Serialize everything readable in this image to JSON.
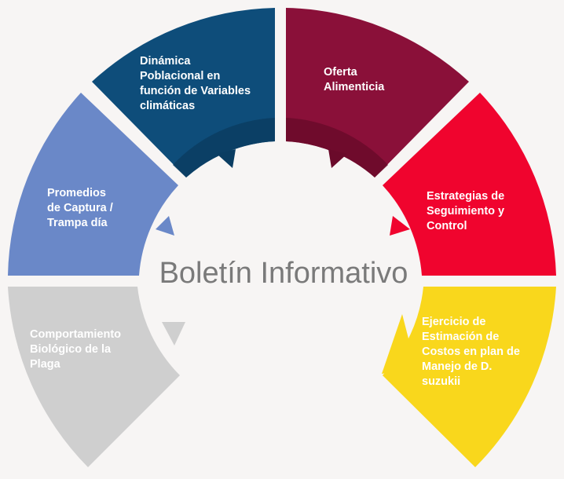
{
  "title": "Boletín Informativo",
  "colors": {
    "background": "#f7f5f4",
    "center_text": "#7a7a7a"
  },
  "segments": [
    {
      "id": "comportamiento",
      "lines": [
        "Comportamiento",
        "Biológico de la",
        "Plaga"
      ],
      "color": "#cfcfcf"
    },
    {
      "id": "promedios",
      "lines": [
        "Promedios",
        "de Captura /",
        "Trampa día"
      ],
      "color": "#6a88c8"
    },
    {
      "id": "dinamica",
      "lines": [
        "Dinámica",
        "Poblacional en",
        "función de Variables",
        "climáticas"
      ],
      "color": "#0e4d7a"
    },
    {
      "id": "oferta",
      "lines": [
        "Oferta",
        "Alimenticia"
      ],
      "color": "#8a1039"
    },
    {
      "id": "estrategias",
      "lines": [
        "Estrategias de",
        "Seguimiento y",
        "Control"
      ],
      "color": "#f0042e"
    },
    {
      "id": "ejercicio",
      "lines": [
        "Ejercicio de",
        "Estimación de",
        "Costos en plan de",
        "Manejo de D.",
        "suzukii"
      ],
      "color": "#f9d71c"
    }
  ]
}
